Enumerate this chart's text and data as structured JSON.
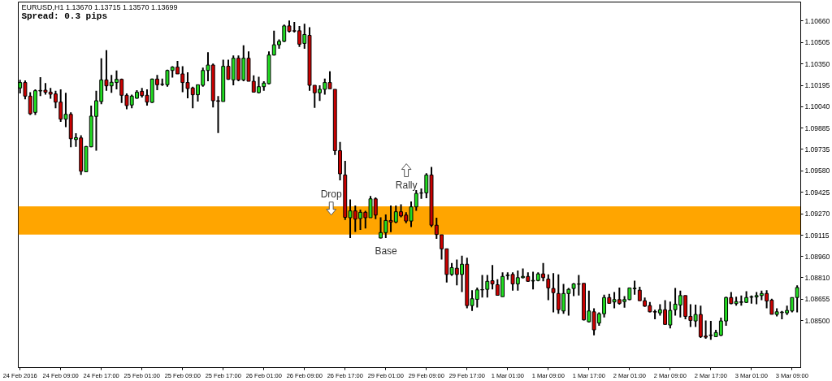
{
  "chart_data": {
    "type": "candlestick",
    "title": "EURUSD,H1  1.13670 1.13715 1.13570 1.13699",
    "subtitle": "Spread: 0.3 pips",
    "annotations": [
      "Drop",
      "Rally"
    ],
    "categories": [
      "24 Feb 2016",
      null,
      null,
      null,
      null,
      null,
      null,
      null,
      "24 Feb 09:00",
      null,
      null,
      null,
      null,
      null,
      null,
      null,
      "24 Feb 17:00",
      null,
      null,
      null,
      null,
      null,
      null,
      null,
      "25 Feb 01:00",
      null,
      null,
      null,
      null,
      null,
      null,
      null,
      "25 Feb 09:00",
      null,
      null,
      null,
      null,
      null,
      null,
      null,
      "25 Feb 17:00",
      null,
      null,
      null,
      null,
      null,
      null,
      null,
      "26 Feb 01:00",
      null,
      null,
      null,
      null,
      null,
      null,
      null,
      "26 Feb 09:00",
      null,
      null,
      null,
      null,
      null,
      null,
      null,
      "26 Feb 17:00",
      null,
      null,
      null,
      null,
      null,
      null,
      null,
      "29 Feb 01:00",
      null,
      null,
      null,
      null,
      null,
      null,
      null,
      "29 Feb 09:00",
      null,
      null,
      null,
      null,
      null,
      null,
      null,
      "29 Feb 17:00",
      null,
      null,
      null,
      null,
      null,
      null,
      null,
      "1 Mar 01:00",
      null,
      null,
      null,
      null,
      null,
      null,
      null,
      "1 Mar 09:00",
      null,
      null,
      null,
      null,
      null,
      null,
      null,
      "1 Mar 17:00",
      null,
      null,
      null,
      null,
      null,
      null,
      null,
      "2 Mar 01:00",
      null,
      null,
      null,
      null,
      null,
      null,
      null,
      "2 Mar 09:00",
      null,
      null,
      null,
      null,
      null,
      null,
      null,
      "2 Mar 17:00",
      null,
      null,
      null,
      null,
      null,
      null,
      null,
      "3 Mar 01:00",
      null,
      null,
      null,
      null,
      null,
      null,
      null,
      "3 Mar 09:00",
      null
    ],
    "ohlc": [
      [
        1.10176,
        1.10234,
        1.10137,
        1.10215
      ],
      [
        1.10215,
        1.1023,
        1.10094,
        1.10117
      ],
      [
        1.10117,
        1.10146,
        1.09981,
        1.0999
      ],
      [
        1.1,
        1.10166,
        1.09981,
        1.10156
      ],
      [
        1.10154,
        1.10253,
        1.10117,
        1.10158
      ],
      [
        1.1016,
        1.10211,
        1.10127,
        1.10145
      ],
      [
        1.10146,
        1.10176,
        1.10098,
        1.10131
      ],
      [
        1.10133,
        1.10156,
        1.10029,
        1.10074
      ],
      [
        1.10074,
        1.10166,
        1.09932,
        1.09951
      ],
      [
        1.09951,
        1.10141,
        1.09893,
        1.09986
      ],
      [
        1.09986,
        1.1,
        1.09748,
        1.0981
      ],
      [
        1.09804,
        1.09849,
        1.09752,
        1.09818
      ],
      [
        1.09816,
        1.09835,
        1.09549,
        1.09576
      ],
      [
        1.09572,
        1.09757,
        1.09572,
        1.09754
      ],
      [
        1.09752,
        1.10049,
        1.09748,
        1.09973
      ],
      [
        1.09971,
        1.10156,
        1.09724,
        1.10084
      ],
      [
        1.10078,
        1.1039,
        1.10059,
        1.10234
      ],
      [
        1.10234,
        1.10448,
        1.10156,
        1.10191
      ],
      [
        1.10191,
        1.10269,
        1.10141,
        1.10217
      ],
      [
        1.10215,
        1.10302,
        1.10166,
        1.10238
      ],
      [
        1.10238,
        1.10244,
        1.10068,
        1.10123
      ],
      [
        1.10123,
        1.10137,
        1.10023,
        1.10049
      ],
      [
        1.10053,
        1.10127,
        1.10029,
        1.10117
      ],
      [
        1.10102,
        1.1016,
        1.10098,
        1.10146
      ],
      [
        1.10152,
        1.10176,
        1.10107,
        1.10121
      ],
      [
        1.10123,
        1.10166,
        1.10049,
        1.10074
      ],
      [
        1.10072,
        1.10244,
        1.10068,
        1.1024
      ],
      [
        1.1024,
        1.10269,
        1.1016,
        1.10199
      ],
      [
        1.10203,
        1.10244,
        1.10191,
        1.10201
      ],
      [
        1.10199,
        1.10308,
        1.10185,
        1.10302
      ],
      [
        1.10302,
        1.10332,
        1.1025,
        1.10326
      ],
      [
        1.10326,
        1.10371,
        1.10277,
        1.10277
      ],
      [
        1.10277,
        1.10332,
        1.10146,
        1.10215
      ],
      [
        1.10215,
        1.10289,
        1.10102,
        1.10172
      ],
      [
        1.10176,
        1.10185,
        1.10029,
        1.10127
      ],
      [
        1.10127,
        1.10199,
        1.10078,
        1.10199
      ],
      [
        1.10195,
        1.10322,
        1.10185,
        1.10302
      ],
      [
        1.10302,
        1.10433,
        1.10224,
        1.10341
      ],
      [
        1.10341,
        1.10351,
        1.10035,
        1.10084
      ],
      [
        1.10084,
        1.10117,
        1.09851,
        1.1008
      ],
      [
        1.10078,
        1.1038,
        1.10078,
        1.10332
      ],
      [
        1.10332,
        1.1038,
        1.10234,
        1.10238
      ],
      [
        1.10234,
        1.1041,
        1.10195,
        1.1039
      ],
      [
        1.1039,
        1.1041,
        1.10224,
        1.10234
      ],
      [
        1.10234,
        1.10484,
        1.10224,
        1.1039
      ],
      [
        1.1039,
        1.10439,
        1.10224,
        1.10224
      ],
      [
        1.10224,
        1.10267,
        1.10146,
        1.10146
      ],
      [
        1.10142,
        1.10257,
        1.10137,
        1.10185
      ],
      [
        1.10185,
        1.10224,
        1.10156,
        1.10211
      ],
      [
        1.10207,
        1.10439,
        1.10203,
        1.10413
      ],
      [
        1.10413,
        1.10588,
        1.1041,
        1.10487
      ],
      [
        1.10487,
        1.10526,
        1.10458,
        1.10512
      ],
      [
        1.10512,
        1.10633,
        1.10506,
        1.10623
      ],
      [
        1.10623,
        1.10662,
        1.10575,
        1.10584
      ],
      [
        1.10588,
        1.10652,
        1.10575,
        1.10586
      ],
      [
        1.10588,
        1.10623,
        1.10472,
        1.10491
      ],
      [
        1.10497,
        1.10639,
        1.10458,
        1.10561
      ],
      [
        1.10555,
        1.10614,
        1.10156,
        1.10195
      ],
      [
        1.10195,
        1.10195,
        1.10033,
        1.10141
      ],
      [
        1.10141,
        1.10195,
        1.10082,
        1.10166
      ],
      [
        1.10166,
        1.10244,
        1.10127,
        1.10215
      ],
      [
        1.10215,
        1.10296,
        1.1017,
        1.1017
      ],
      [
        1.10166,
        1.10166,
        1.09693,
        1.09724
      ],
      [
        1.09724,
        1.09787,
        1.0951,
        1.09557
      ],
      [
        1.09549,
        1.0965,
        1.09225,
        1.09244
      ],
      [
        1.09241,
        1.09373,
        1.09095,
        1.0929
      ],
      [
        1.0929,
        1.09329,
        1.09139,
        1.09231
      ],
      [
        1.09235,
        1.09299,
        1.09153,
        1.0928
      ],
      [
        1.0928,
        1.0929,
        1.09163,
        1.09241
      ],
      [
        1.09241,
        1.09397,
        1.09241,
        1.09377
      ],
      [
        1.09377,
        1.09387,
        1.09231,
        1.0926
      ],
      [
        1.09095,
        1.09244,
        1.09091,
        1.09134
      ],
      [
        1.09134,
        1.09264,
        1.09095,
        1.09221
      ],
      [
        1.09221,
        1.09329,
        1.09137,
        1.0921
      ],
      [
        1.0921,
        1.09329,
        1.09202,
        1.09284
      ],
      [
        1.09284,
        1.09338,
        1.09244,
        1.09254
      ],
      [
        1.0926,
        1.0928,
        1.09202,
        1.09217
      ],
      [
        1.09217,
        1.09358,
        1.09173,
        1.09319
      ],
      [
        1.09319,
        1.0944,
        1.0929,
        1.09416
      ],
      [
        1.09418,
        1.09451,
        1.09377,
        1.0942
      ],
      [
        1.0942,
        1.09562,
        1.09381,
        1.09549
      ],
      [
        1.09549,
        1.09607,
        1.09173,
        1.09187
      ],
      [
        1.09187,
        1.09241,
        1.09089,
        1.0912
      ],
      [
        1.09118,
        1.09118,
        1.08939,
        1.09017
      ],
      [
        1.09017,
        1.09017,
        1.08774,
        1.08832
      ],
      [
        1.08832,
        1.08914,
        1.08822,
        1.08881
      ],
      [
        1.08877,
        1.08939,
        1.08754,
        1.08832
      ],
      [
        1.08832,
        1.08968,
        1.08705,
        1.08906
      ],
      [
        1.08906,
        1.08953,
        1.08588,
        1.08608
      ],
      [
        1.08608,
        1.08719,
        1.08569,
        1.08657
      ],
      [
        1.08653,
        1.08738,
        1.08594,
        1.08721
      ],
      [
        1.08721,
        1.08828,
        1.08666,
        1.08723
      ],
      [
        1.08725,
        1.08828,
        1.08666,
        1.08783
      ],
      [
        1.08787,
        1.089,
        1.08725,
        1.08764
      ],
      [
        1.08758,
        1.08797,
        1.08682,
        1.08682
      ],
      [
        1.08672,
        1.08848,
        1.08672,
        1.08818
      ],
      [
        1.08824,
        1.08848,
        1.08793,
        1.08828
      ],
      [
        1.08832,
        1.08848,
        1.08715,
        1.08764
      ],
      [
        1.08764,
        1.08861,
        1.08715,
        1.08809
      ],
      [
        1.08809,
        1.08875,
        1.08803,
        1.08818
      ],
      [
        1.08818,
        1.08848,
        1.08778,
        1.08783
      ],
      [
        1.08785,
        1.08852,
        1.08725,
        1.08789
      ],
      [
        1.08789,
        1.08848,
        1.08783,
        1.08836
      ],
      [
        1.08836,
        1.08914,
        1.08783,
        1.08809
      ],
      [
        1.08799,
        1.08832,
        1.08647,
        1.08735
      ],
      [
        1.08731,
        1.08842,
        1.08559,
        1.08701
      ],
      [
        1.08695,
        1.08832,
        1.08549,
        1.08578
      ],
      [
        1.08569,
        1.08764,
        1.08549,
        1.08695
      ],
      [
        1.08695,
        1.08735,
        1.08536,
        1.08725
      ],
      [
        1.08731,
        1.0877,
        1.08676,
        1.08764
      ],
      [
        1.08762,
        1.08828,
        1.0868,
        1.08764
      ],
      [
        1.08768,
        1.08768,
        1.08501,
        1.08505
      ],
      [
        1.08491,
        1.08715,
        1.08486,
        1.08569
      ],
      [
        1.08563,
        1.08588,
        1.08394,
        1.08433
      ],
      [
        1.08482,
        1.08559,
        1.08462,
        1.08549
      ],
      [
        1.08549,
        1.08686,
        1.08523,
        1.08666
      ],
      [
        1.08666,
        1.08692,
        1.08622,
        1.08624
      ],
      [
        1.08634,
        1.08705,
        1.08588,
        1.08651
      ],
      [
        1.08651,
        1.08738,
        1.08614,
        1.08624
      ],
      [
        1.08637,
        1.08676,
        1.08592,
        1.08651
      ],
      [
        1.08651,
        1.08738,
        1.08647,
        1.08735
      ],
      [
        1.08729,
        1.08787,
        1.08686,
        1.08733
      ],
      [
        1.08719,
        1.08744,
        1.08643,
        1.08643
      ],
      [
        1.08643,
        1.08666,
        1.08598,
        1.08604
      ],
      [
        1.08608,
        1.08633,
        1.08559,
        1.08563
      ],
      [
        1.08565,
        1.08578,
        1.0851,
        1.08561
      ],
      [
        1.08555,
        1.08618,
        1.08536,
        1.08578
      ],
      [
        1.08578,
        1.08647,
        1.08472,
        1.08472
      ],
      [
        1.08468,
        1.08637,
        1.08443,
        1.08573
      ],
      [
        1.08578,
        1.08735,
        1.08536,
        1.08618
      ],
      [
        1.08612,
        1.08715,
        1.08523,
        1.0868
      ],
      [
        1.0868,
        1.0868,
        1.0851,
        1.0853
      ],
      [
        1.0853,
        1.08618,
        1.08453,
        1.08501
      ],
      [
        1.08497,
        1.08614,
        1.08453,
        1.08544
      ],
      [
        1.08544,
        1.08608,
        1.08375,
        1.08384
      ],
      [
        1.08388,
        1.08501,
        1.08369,
        1.0838
      ],
      [
        1.08396,
        1.08497,
        1.08361,
        1.08392
      ],
      [
        1.08384,
        1.08433,
        1.0838,
        1.08414
      ],
      [
        1.08394,
        1.08521,
        1.08388,
        1.08497
      ],
      [
        1.08497,
        1.08672,
        1.08462,
        1.08666
      ],
      [
        1.08666,
        1.08705,
        1.08618,
        1.08622
      ],
      [
        1.08622,
        1.08672,
        1.08608,
        1.08637
      ],
      [
        1.08631,
        1.0868,
        1.08608,
        1.08635
      ],
      [
        1.08631,
        1.08711,
        1.08627,
        1.08666
      ],
      [
        1.08668,
        1.0868,
        1.08622,
        1.08672
      ],
      [
        1.0867,
        1.08705,
        1.08618,
        1.0868
      ],
      [
        1.0868,
        1.08715,
        1.08647,
        1.08695
      ],
      [
        1.08695,
        1.08719,
        1.08588,
        1.08641
      ],
      [
        1.08647,
        1.08657,
        1.08545,
        1.08545
      ],
      [
        1.08544,
        1.08588,
        1.0853,
        1.08563
      ],
      [
        1.08557,
        1.08569,
        1.0851,
        1.08561
      ],
      [
        1.08555,
        1.08608,
        1.0854,
        1.08573
      ],
      [
        1.08569,
        1.08666,
        1.08559,
        1.08666
      ],
      [
        1.08666,
        1.08754,
        1.08559,
        1.08738
      ]
    ],
    "colors": [
      "#22dd22",
      "#cc0000",
      "#cc0000",
      "#22dd22",
      "#22dd22",
      "#cc0000",
      "#cc0000",
      "#cc0000",
      "#cc0000",
      "#22dd22",
      "#cc0000",
      "#22dd22",
      "#cc0000",
      "#22dd22",
      "#22dd22",
      "#22dd22",
      "#22dd22",
      "#cc0000",
      "#22dd22",
      "#22dd22",
      "#cc0000",
      "#cc0000",
      "#22dd22",
      "#22dd22",
      "#cc0000",
      "#cc0000",
      "#22dd22",
      "#cc0000",
      "#cc0000",
      "#22dd22",
      "#22dd22",
      "#cc0000",
      "#cc0000",
      "#cc0000",
      "#cc0000",
      "#22dd22",
      "#22dd22",
      "#22dd22",
      "#cc0000",
      "#cc0000",
      "#22dd22",
      "#cc0000",
      "#22dd22",
      "#cc0000",
      "#22dd22",
      "#cc0000",
      "#cc0000",
      "#22dd22",
      "#22dd22",
      "#22dd22",
      "#22dd22",
      "#22dd22",
      "#22dd22",
      "#cc0000",
      "#cc0000",
      "#cc0000",
      "#22dd22",
      "#cc0000",
      "#cc0000",
      "#22dd22",
      "#22dd22",
      "#cc0000",
      "#cc0000",
      "#cc0000",
      "#cc0000",
      "#22dd22",
      "#cc0000",
      "#22dd22",
      "#cc0000",
      "#22dd22",
      "#cc0000",
      "#22dd22",
      "#22dd22",
      "#cc0000",
      "#22dd22",
      "#cc0000",
      "#cc0000",
      "#22dd22",
      "#22dd22",
      "#22dd22",
      "#22dd22",
      "#cc0000",
      "#cc0000",
      "#cc0000",
      "#cc0000",
      "#22dd22",
      "#cc0000",
      "#22dd22",
      "#cc0000",
      "#22dd22",
      "#22dd22",
      "#22dd22",
      "#22dd22",
      "#cc0000",
      "#cc0000",
      "#22dd22",
      "#22dd22",
      "#cc0000",
      "#22dd22",
      "#22dd22",
      "#cc0000",
      "#22dd22",
      "#22dd22",
      "#cc0000",
      "#cc0000",
      "#cc0000",
      "#cc0000",
      "#22dd22",
      "#22dd22",
      "#22dd22",
      "#22dd22",
      "#cc0000",
      "#22dd22",
      "#cc0000",
      "#22dd22",
      "#22dd22",
      "#cc0000",
      "#22dd22",
      "#cc0000",
      "#22dd22",
      "#22dd22",
      "#22dd22",
      "#cc0000",
      "#cc0000",
      "#cc0000",
      "#cc0000",
      "#22dd22",
      "#cc0000",
      "#22dd22",
      "#22dd22",
      "#22dd22",
      "#cc0000",
      "#cc0000",
      "#22dd22",
      "#cc0000",
      "#cc0000",
      "#cc0000",
      "#22dd22",
      "#22dd22",
      "#22dd22",
      "#cc0000",
      "#22dd22",
      "#22dd22",
      "#22dd22",
      "#22dd22",
      "#22dd22",
      "#22dd22",
      "#cc0000",
      "#cc0000",
      "#22dd22",
      "#22dd22",
      "#22dd22",
      "#22dd22",
      "#22dd22"
    ],
    "ylim": [
      1.08161,
      1.10795
    ],
    "yticks": [
      {
        "value": 1.1066,
        "label": "1.10660"
      },
      {
        "value": 1.10505,
        "label": "1.10505"
      },
      {
        "value": 1.1035,
        "label": "1.10350"
      },
      {
        "value": 1.10195,
        "label": "1.10195"
      },
      {
        "value": 1.1004,
        "label": "1.10040"
      },
      {
        "value": 1.09885,
        "label": "1.09885"
      },
      {
        "value": 1.09735,
        "label": "1.09735"
      },
      {
        "value": 1.0958,
        "label": "1.09580"
      },
      {
        "value": 1.09425,
        "label": "1.09425"
      },
      {
        "value": 1.0927,
        "label": "1.09270"
      },
      {
        "value": 1.09115,
        "label": "1.09115"
      },
      {
        "value": 1.0896,
        "label": "1.08960"
      },
      {
        "value": 1.0881,
        "label": "1.08810"
      },
      {
        "value": 1.08655,
        "label": "1.08655"
      },
      {
        "value": 1.085,
        "label": "1.08500"
      }
    ],
    "bands": [
      {
        "axis": "y",
        "from": 1.09119,
        "to": 1.09323,
        "label": "Base",
        "color": "#ffa500"
      }
    ]
  }
}
